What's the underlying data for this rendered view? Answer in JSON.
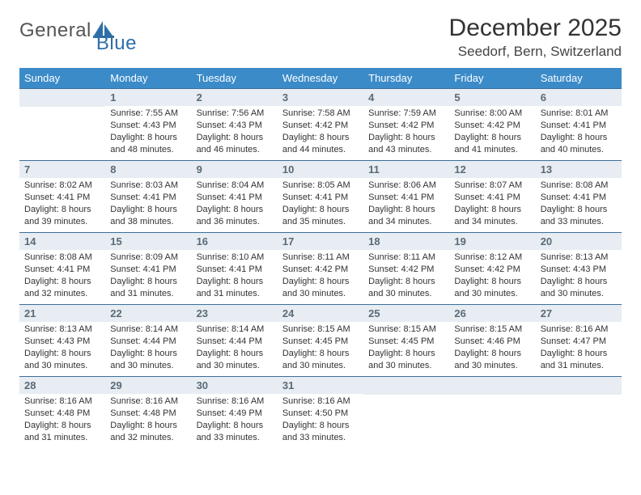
{
  "brand": {
    "part1": "General",
    "part2": "Blue"
  },
  "title": "December 2025",
  "subtitle": "Seedorf, Bern, Switzerland",
  "colors": {
    "header_bg": "#3b8bc9",
    "header_text": "#ffffff",
    "daynum_bg": "#e7edf2",
    "daynum_text": "#5a6a78",
    "row_border": "#3b6f9a",
    "brand_blue": "#2f6fa7"
  },
  "weekdays": [
    "Sunday",
    "Monday",
    "Tuesday",
    "Wednesday",
    "Thursday",
    "Friday",
    "Saturday"
  ],
  "layout": {
    "first_weekday_index": 1,
    "days_in_month": 31
  },
  "days": {
    "1": {
      "sunrise": "7:55 AM",
      "sunset": "4:43 PM",
      "daylight": "8 hours and 48 minutes."
    },
    "2": {
      "sunrise": "7:56 AM",
      "sunset": "4:43 PM",
      "daylight": "8 hours and 46 minutes."
    },
    "3": {
      "sunrise": "7:58 AM",
      "sunset": "4:42 PM",
      "daylight": "8 hours and 44 minutes."
    },
    "4": {
      "sunrise": "7:59 AM",
      "sunset": "4:42 PM",
      "daylight": "8 hours and 43 minutes."
    },
    "5": {
      "sunrise": "8:00 AM",
      "sunset": "4:42 PM",
      "daylight": "8 hours and 41 minutes."
    },
    "6": {
      "sunrise": "8:01 AM",
      "sunset": "4:41 PM",
      "daylight": "8 hours and 40 minutes."
    },
    "7": {
      "sunrise": "8:02 AM",
      "sunset": "4:41 PM",
      "daylight": "8 hours and 39 minutes."
    },
    "8": {
      "sunrise": "8:03 AM",
      "sunset": "4:41 PM",
      "daylight": "8 hours and 38 minutes."
    },
    "9": {
      "sunrise": "8:04 AM",
      "sunset": "4:41 PM",
      "daylight": "8 hours and 36 minutes."
    },
    "10": {
      "sunrise": "8:05 AM",
      "sunset": "4:41 PM",
      "daylight": "8 hours and 35 minutes."
    },
    "11": {
      "sunrise": "8:06 AM",
      "sunset": "4:41 PM",
      "daylight": "8 hours and 34 minutes."
    },
    "12": {
      "sunrise": "8:07 AM",
      "sunset": "4:41 PM",
      "daylight": "8 hours and 34 minutes."
    },
    "13": {
      "sunrise": "8:08 AM",
      "sunset": "4:41 PM",
      "daylight": "8 hours and 33 minutes."
    },
    "14": {
      "sunrise": "8:08 AM",
      "sunset": "4:41 PM",
      "daylight": "8 hours and 32 minutes."
    },
    "15": {
      "sunrise": "8:09 AM",
      "sunset": "4:41 PM",
      "daylight": "8 hours and 31 minutes."
    },
    "16": {
      "sunrise": "8:10 AM",
      "sunset": "4:41 PM",
      "daylight": "8 hours and 31 minutes."
    },
    "17": {
      "sunrise": "8:11 AM",
      "sunset": "4:42 PM",
      "daylight": "8 hours and 30 minutes."
    },
    "18": {
      "sunrise": "8:11 AM",
      "sunset": "4:42 PM",
      "daylight": "8 hours and 30 minutes."
    },
    "19": {
      "sunrise": "8:12 AM",
      "sunset": "4:42 PM",
      "daylight": "8 hours and 30 minutes."
    },
    "20": {
      "sunrise": "8:13 AM",
      "sunset": "4:43 PM",
      "daylight": "8 hours and 30 minutes."
    },
    "21": {
      "sunrise": "8:13 AM",
      "sunset": "4:43 PM",
      "daylight": "8 hours and 30 minutes."
    },
    "22": {
      "sunrise": "8:14 AM",
      "sunset": "4:44 PM",
      "daylight": "8 hours and 30 minutes."
    },
    "23": {
      "sunrise": "8:14 AM",
      "sunset": "4:44 PM",
      "daylight": "8 hours and 30 minutes."
    },
    "24": {
      "sunrise": "8:15 AM",
      "sunset": "4:45 PM",
      "daylight": "8 hours and 30 minutes."
    },
    "25": {
      "sunrise": "8:15 AM",
      "sunset": "4:45 PM",
      "daylight": "8 hours and 30 minutes."
    },
    "26": {
      "sunrise": "8:15 AM",
      "sunset": "4:46 PM",
      "daylight": "8 hours and 30 minutes."
    },
    "27": {
      "sunrise": "8:16 AM",
      "sunset": "4:47 PM",
      "daylight": "8 hours and 31 minutes."
    },
    "28": {
      "sunrise": "8:16 AM",
      "sunset": "4:48 PM",
      "daylight": "8 hours and 31 minutes."
    },
    "29": {
      "sunrise": "8:16 AM",
      "sunset": "4:48 PM",
      "daylight": "8 hours and 32 minutes."
    },
    "30": {
      "sunrise": "8:16 AM",
      "sunset": "4:49 PM",
      "daylight": "8 hours and 33 minutes."
    },
    "31": {
      "sunrise": "8:16 AM",
      "sunset": "4:50 PM",
      "daylight": "8 hours and 33 minutes."
    }
  },
  "labels": {
    "sunrise": "Sunrise:",
    "sunset": "Sunset:",
    "daylight": "Daylight:"
  }
}
